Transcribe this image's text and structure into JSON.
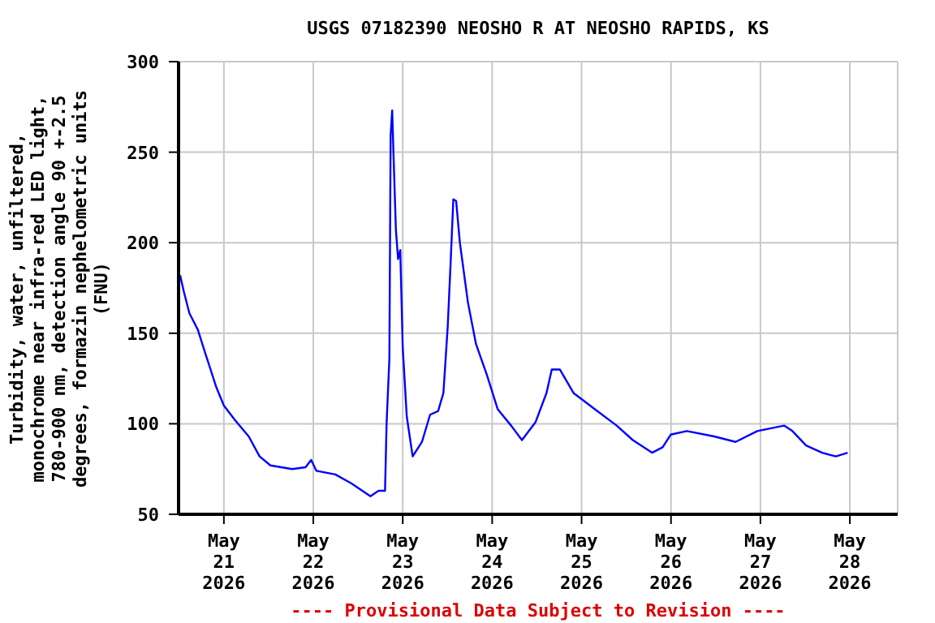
{
  "chart_data": {
    "type": "line",
    "title": "USGS 07182390 NEOSHO R AT NEOSHO RAPIDS, KS",
    "ylabel": "Turbidity, water, unfiltered, monochrome near infra-red LED light, 780-900 nm, detection angle 90 +-2.5 degrees, formazin nephelometric units (FNU)",
    "annotations": [
      "---- Provisional Data Subject to Revision ----"
    ],
    "x": [
      "2026-05-20T12:15",
      "2026-05-20T13:15",
      "2026-05-20T14:45",
      "2026-05-20T17:00",
      "2026-05-20T19:00",
      "2026-05-20T22:00",
      "2026-05-21T00:00",
      "2026-05-21T03:00",
      "2026-05-21T06:40",
      "2026-05-21T09:35",
      "2026-05-21T12:30",
      "2026-05-21T18:20",
      "2026-05-21T21:55",
      "2026-05-21T23:25",
      "2026-05-22T00:50",
      "2026-05-22T05:55",
      "2026-05-22T10:15",
      "2026-05-22T15:20",
      "2026-05-22T17:30",
      "2026-05-22T19:15",
      "2026-05-22T19:40",
      "2026-05-22T20:25",
      "2026-05-22T20:45",
      "2026-05-22T21:10",
      "2026-05-22T21:35",
      "2026-05-22T22:10",
      "2026-05-22T22:45",
      "2026-05-22T23:20",
      "2026-05-23T00:00",
      "2026-05-23T01:05",
      "2026-05-23T02:40",
      "2026-05-23T05:10",
      "2026-05-23T07:20",
      "2026-05-23T09:30",
      "2026-05-23T10:55",
      "2026-05-23T12:05",
      "2026-05-23T12:50",
      "2026-05-23T13:35",
      "2026-05-23T14:20",
      "2026-05-23T15:20",
      "2026-05-23T17:30",
      "2026-05-23T19:40",
      "2026-05-23T22:35",
      "2026-05-24T01:30",
      "2026-05-24T05:05",
      "2026-05-24T08:00",
      "2026-05-24T11:40",
      "2026-05-24T14:35",
      "2026-05-24T16:00",
      "2026-05-24T18:10",
      "2026-05-24T21:50",
      "2026-05-25T03:35",
      "2026-05-25T09:25",
      "2026-05-25T13:45",
      "2026-05-25T18:55",
      "2026-05-25T21:45",
      "2026-05-25T23:55",
      "2026-05-26T04:15",
      "2026-05-26T11:35",
      "2026-05-26T17:20",
      "2026-05-26T23:10",
      "2026-05-27T06:25",
      "2026-05-27T08:35",
      "2026-05-27T12:15",
      "2026-05-27T16:35",
      "2026-05-27T20:15",
      "2026-05-27T23:25"
    ],
    "series": [
      {
        "color": "#0000ff",
        "values": [
          182,
          173,
          161,
          152,
          139,
          120,
          110,
          102,
          93,
          82,
          77,
          75,
          76,
          80,
          74,
          72,
          67,
          60,
          63,
          63,
          100,
          136,
          259,
          273,
          245,
          207,
          191,
          196,
          142,
          104,
          82,
          90,
          105,
          107,
          117,
          154,
          188,
          224,
          223,
          200,
          167,
          144,
          127,
          108,
          99,
          91,
          101,
          117,
          130,
          130,
          117,
          108,
          99,
          91,
          84,
          87,
          94,
          96,
          93,
          90,
          96,
          99,
          96,
          88,
          84,
          82,
          84
        ]
      }
    ],
    "xlim": [
      "2026-05-20T11:50",
      "2026-05-28T12:50"
    ],
    "xticks": [
      {
        "value": "2026-05-21",
        "label": "May 21 2026"
      },
      {
        "value": "2026-05-22",
        "label": "May 22 2026"
      },
      {
        "value": "2026-05-23",
        "label": "May 23 2026"
      },
      {
        "value": "2026-05-24",
        "label": "May 24 2026"
      },
      {
        "value": "2026-05-25",
        "label": "May 25 2026"
      },
      {
        "value": "2026-05-26",
        "label": "May 26 2026"
      },
      {
        "value": "2026-05-27",
        "label": "May 27 2026"
      },
      {
        "value": "2026-05-28",
        "label": "May 28 2026"
      }
    ],
    "ylim": [
      50,
      300
    ],
    "yticks": [
      50,
      100,
      150,
      200,
      250,
      300
    ],
    "grid": true,
    "legend": false,
    "marker": "none",
    "line_style": "solid"
  }
}
